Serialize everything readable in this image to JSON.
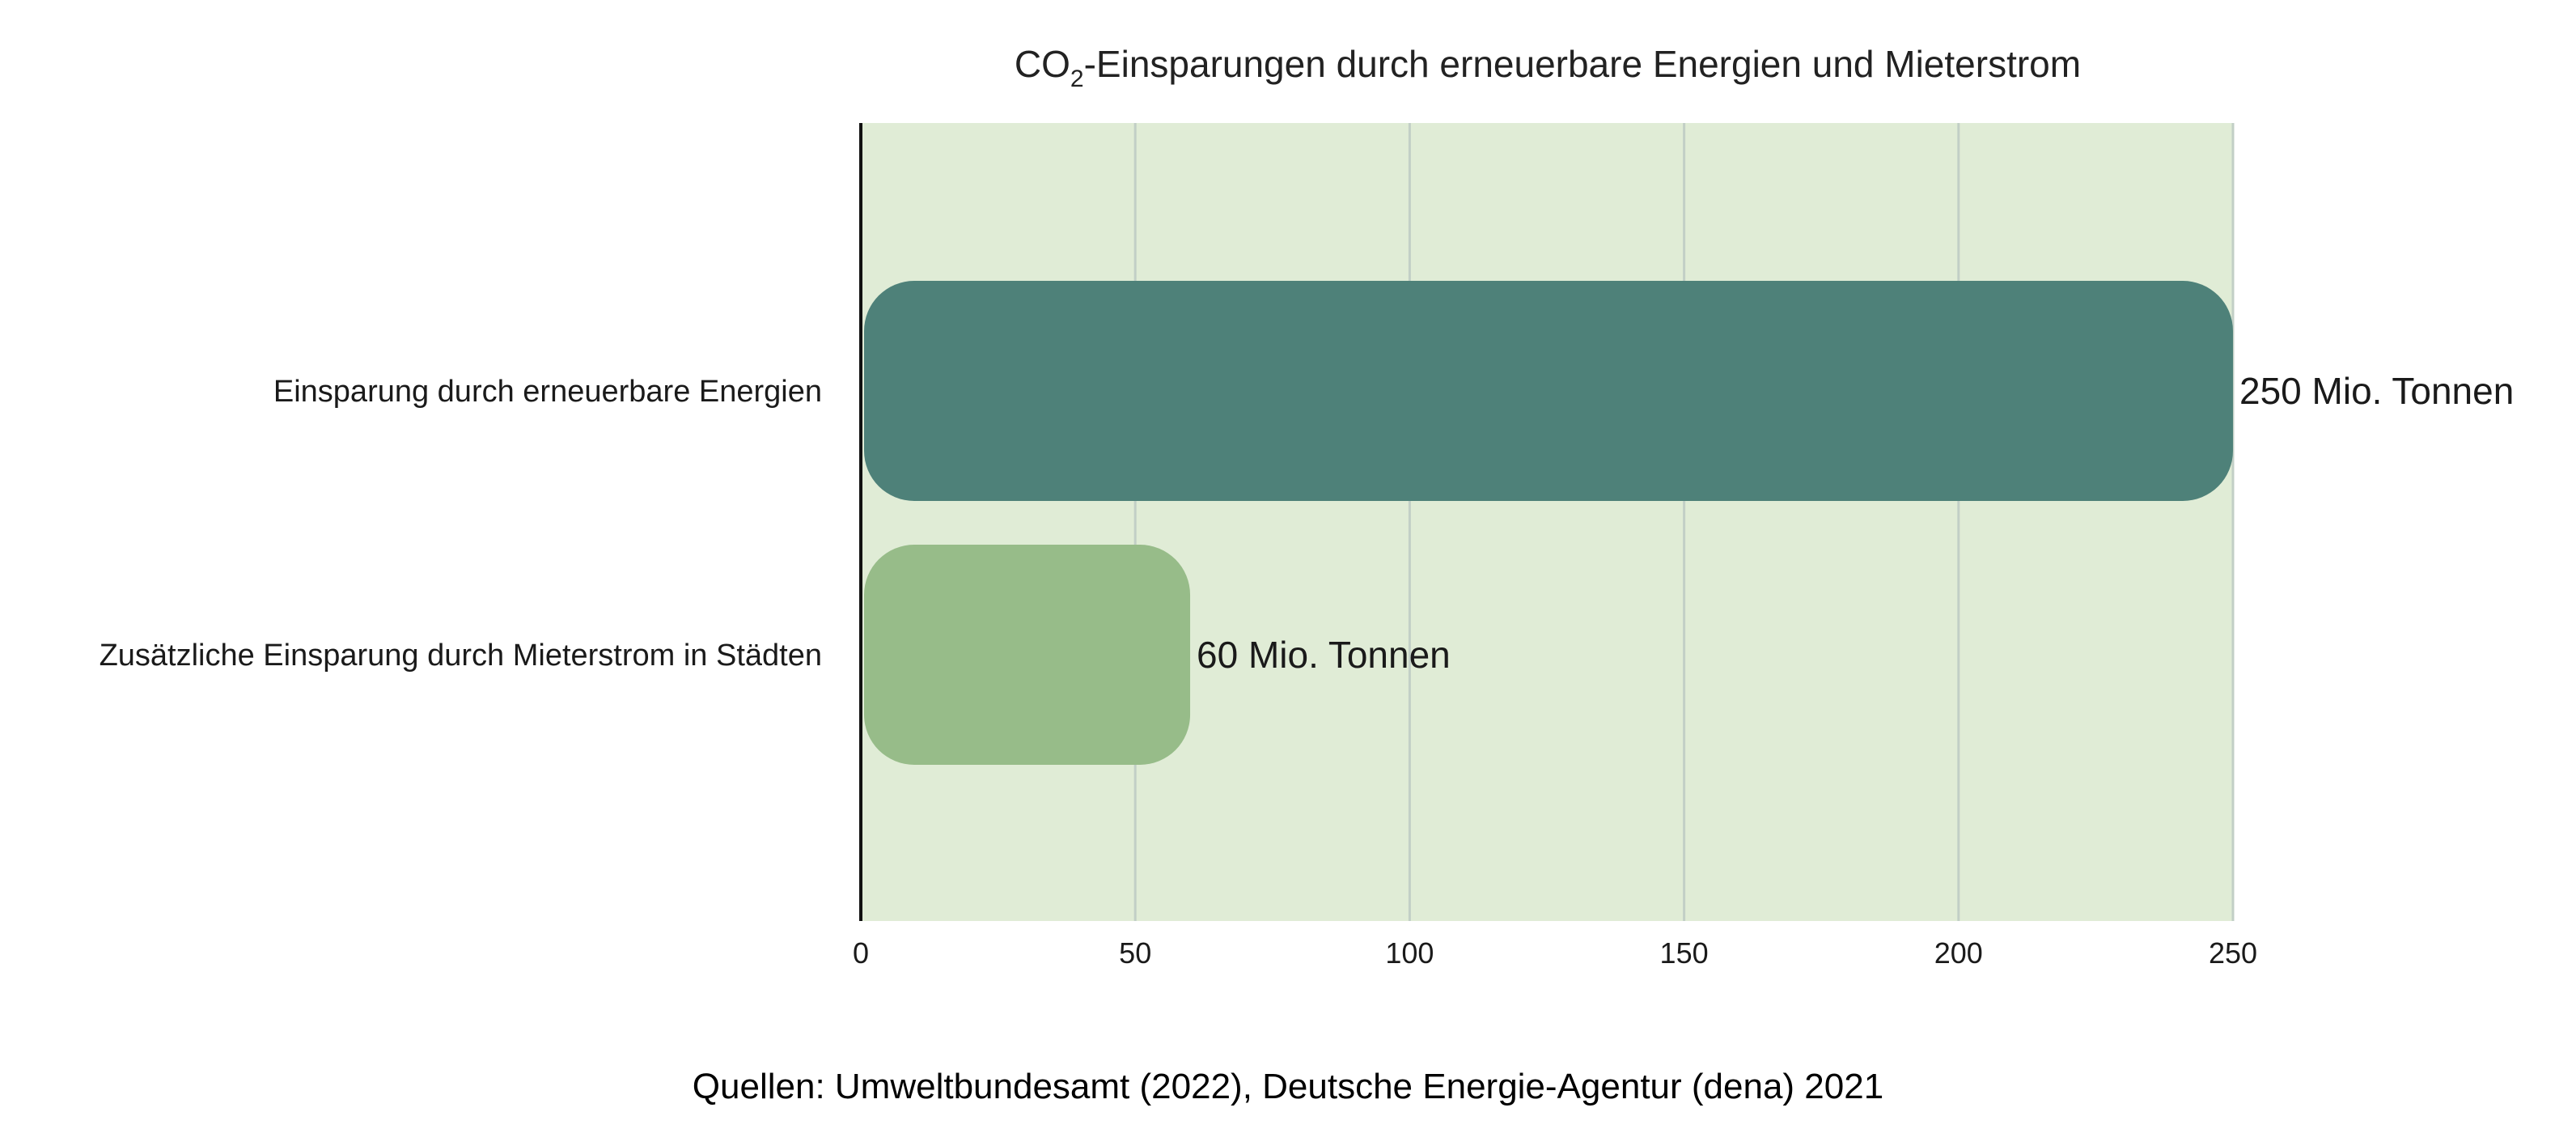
{
  "chart_data": {
    "type": "bar",
    "orientation": "horizontal",
    "title_main": "CO",
    "title_subscript": "2",
    "title_rest": "-Einsparungen durch erneuerbare Energien und Mieterstrom",
    "categories": [
      "Einsparung durch erneuerbare Energien",
      "Zusätzliche Einsparung durch Mieterstrom in Städten"
    ],
    "values": [
      250,
      60
    ],
    "data_labels": [
      "250 Mio. Tonnen",
      "60 Mio. Tonnen"
    ],
    "bar_colors": [
      "#4e8179",
      "#97bc89"
    ],
    "plot_background": "#e0ecd6",
    "gridline_color": "#c2cfc6",
    "xlim": [
      0,
      250
    ],
    "xticks": [
      0,
      50,
      100,
      150,
      200,
      250
    ],
    "grid": true,
    "legend": "none"
  },
  "source": "Quellen: Umweltbundesamt (2022), Deutsche Energie-Agentur (dena) 2021"
}
